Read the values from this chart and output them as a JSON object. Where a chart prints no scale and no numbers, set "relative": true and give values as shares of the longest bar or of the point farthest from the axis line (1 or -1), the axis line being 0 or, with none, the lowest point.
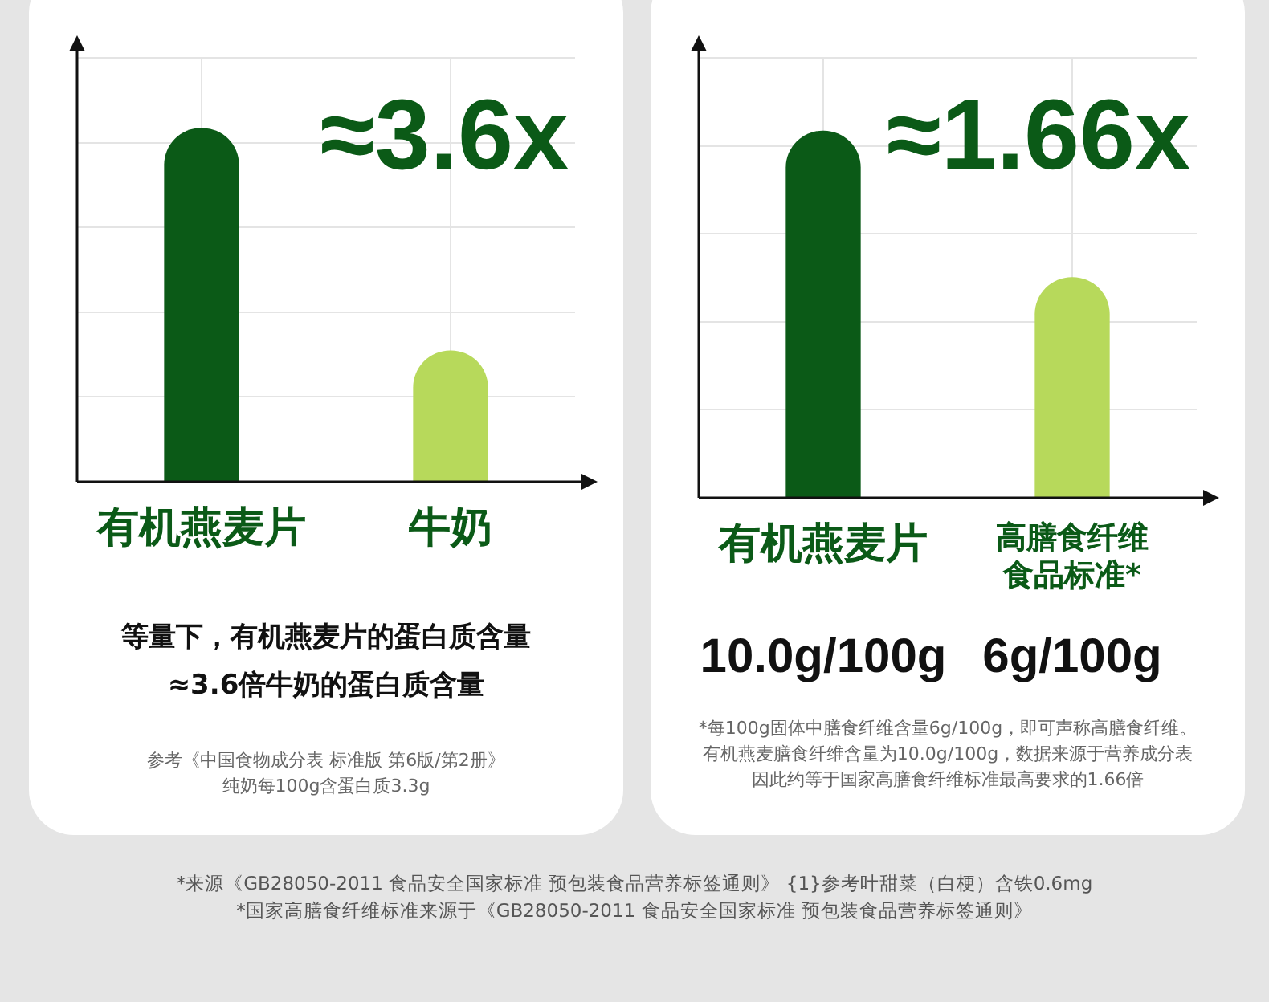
{
  "chart_data": [
    {
      "type": "bar",
      "categories": [
        "有机燕麦片",
        "牛奶"
      ],
      "values": [
        1,
        0.37
      ],
      "colors": [
        "#0b5a17",
        "#b7d95b"
      ],
      "relative": true,
      "grid": true,
      "annotations": [
        "≈3.6x",
        "等量下，有机燕麦片的蛋白质含量",
        "≈3.6倍牛奶的蛋白质含量",
        "参考《中国食物成分表 标准版 第6版/第2册》",
        "纯奶每100g含蛋白质3.3g"
      ]
    },
    {
      "type": "bar",
      "categories": [
        "有机燕麦片",
        "高膳食纤维食品标准*"
      ],
      "values": [
        10.0,
        6
      ],
      "colors": [
        "#0b5a17",
        "#b7d95b"
      ],
      "grid": true,
      "value_labels": [
        "10.0g/100g",
        "6g/100g"
      ],
      "annotations": [
        "≈1.66x",
        "*每100g固体中膳食纤维含量6g/100g，即可声称高膳食纤维。",
        "有机燕麦膳食纤维含量为10.0g/100g，数据来源于营养成分表",
        "因此约等于国家高膳食纤维标准最高要求的1.66倍"
      ]
    },
    {
      "type": "other",
      "annotations": [
        "*来源《GB28050-2011 食品安全国家标准  预包装食品营养标签通则》 {1}参考叶甜菜（白梗）含铁0.6mg",
        "*国家高膳食纤维标准来源于《GB28050-2011 食品安全国家标准 预包装食品营养标签通则》"
      ]
    }
  ]
}
